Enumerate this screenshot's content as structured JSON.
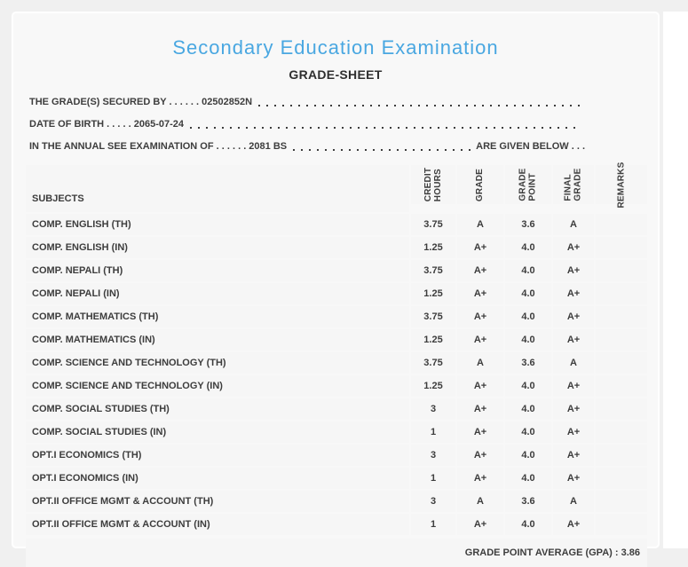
{
  "header": {
    "title": "Secondary Education Examination",
    "subtitle": "GRADE-SHEET"
  },
  "info": {
    "lines": [
      {
        "text": "THE GRADE(S) SECURED BY . . . . . . 02502852N",
        "suffix": ""
      },
      {
        "text": "DATE OF BIRTH . . . . . 2065-07-24",
        "suffix": ""
      },
      {
        "text": "IN THE ANNUAL SEE EXAMINATION OF . . . . . . 2081 BS",
        "suffix": "ARE GIVEN BELOW . . ."
      }
    ]
  },
  "table": {
    "subjects_header": "SUBJECTS",
    "rotated_columns": [
      {
        "name": "credit-hours",
        "lines": [
          "CREDIT",
          "HOURS"
        ]
      },
      {
        "name": "grade",
        "lines": [
          "GRADE"
        ]
      },
      {
        "name": "grade-point",
        "lines": [
          "GRADE",
          "POINT"
        ]
      },
      {
        "name": "final-grade",
        "lines": [
          "FINAL",
          "GRADE"
        ]
      },
      {
        "name": "remarks",
        "lines": [
          "REMARKS"
        ]
      }
    ],
    "rows": [
      {
        "subject": "COMP. ENGLISH (TH)",
        "credit_hours": "3.75",
        "grade": "A",
        "grade_point": "3.6",
        "final_grade": "A",
        "remarks": ""
      },
      {
        "subject": "COMP. ENGLISH (IN)",
        "credit_hours": "1.25",
        "grade": "A+",
        "grade_point": "4.0",
        "final_grade": "A+",
        "remarks": ""
      },
      {
        "subject": "COMP. NEPALI (TH)",
        "credit_hours": "3.75",
        "grade": "A+",
        "grade_point": "4.0",
        "final_grade": "A+",
        "remarks": ""
      },
      {
        "subject": "COMP. NEPALI (IN)",
        "credit_hours": "1.25",
        "grade": "A+",
        "grade_point": "4.0",
        "final_grade": "A+",
        "remarks": ""
      },
      {
        "subject": "COMP. MATHEMATICS (TH)",
        "credit_hours": "3.75",
        "grade": "A+",
        "grade_point": "4.0",
        "final_grade": "A+",
        "remarks": ""
      },
      {
        "subject": "COMP. MATHEMATICS (IN)",
        "credit_hours": "1.25",
        "grade": "A+",
        "grade_point": "4.0",
        "final_grade": "A+",
        "remarks": ""
      },
      {
        "subject": "COMP. SCIENCE AND TECHNOLOGY (TH)",
        "credit_hours": "3.75",
        "grade": "A",
        "grade_point": "3.6",
        "final_grade": "A",
        "remarks": ""
      },
      {
        "subject": "COMP. SCIENCE AND TECHNOLOGY (IN)",
        "credit_hours": "1.25",
        "grade": "A+",
        "grade_point": "4.0",
        "final_grade": "A+",
        "remarks": ""
      },
      {
        "subject": "COMP. SOCIAL STUDIES (TH)",
        "credit_hours": "3",
        "grade": "A+",
        "grade_point": "4.0",
        "final_grade": "A+",
        "remarks": ""
      },
      {
        "subject": "COMP. SOCIAL STUDIES (IN)",
        "credit_hours": "1",
        "grade": "A+",
        "grade_point": "4.0",
        "final_grade": "A+",
        "remarks": ""
      },
      {
        "subject": "OPT.I ECONOMICS (TH)",
        "credit_hours": "3",
        "grade": "A+",
        "grade_point": "4.0",
        "final_grade": "A+",
        "remarks": ""
      },
      {
        "subject": "OPT.I ECONOMICS (IN)",
        "credit_hours": "1",
        "grade": "A+",
        "grade_point": "4.0",
        "final_grade": "A+",
        "remarks": ""
      },
      {
        "subject": "OPT.II OFFICE MGMT & ACCOUNT (TH)",
        "credit_hours": "3",
        "grade": "A",
        "grade_point": "3.6",
        "final_grade": "A",
        "remarks": ""
      },
      {
        "subject": "OPT.II OFFICE MGMT & ACCOUNT (IN)",
        "credit_hours": "1",
        "grade": "A+",
        "grade_point": "4.0",
        "final_grade": "A+",
        "remarks": ""
      }
    ]
  },
  "footer": {
    "gpa_text": "GRADE POINT AVERAGE (GPA) : 3.86"
  },
  "colors": {
    "accent_blue": "#49a7e1",
    "text_dark": "#3d3d3d",
    "card_bg": "#f8f8f8",
    "grid_line": "#ffffff"
  }
}
